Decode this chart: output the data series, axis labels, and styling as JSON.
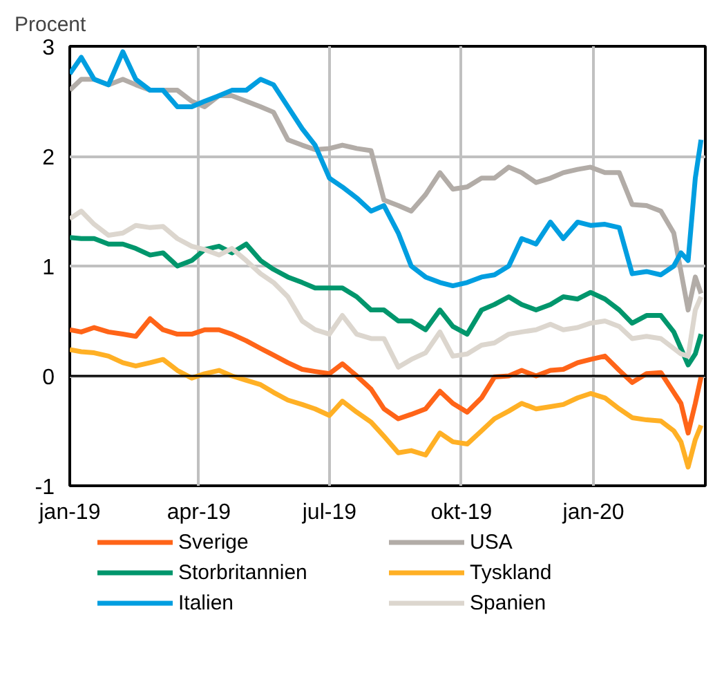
{
  "chart_data": {
    "type": "line",
    "ylabel": "Procent",
    "x": [
      "2019-01-01",
      "2019-01-09",
      "2019-01-18",
      "2019-01-28",
      "2019-02-07",
      "2019-02-16",
      "2019-02-26",
      "2019-03-07",
      "2019-03-17",
      "2019-03-27",
      "2019-04-05",
      "2019-04-15",
      "2019-04-24",
      "2019-05-04",
      "2019-05-14",
      "2019-05-23",
      "2019-06-02",
      "2019-06-12",
      "2019-06-21",
      "2019-07-01",
      "2019-07-10",
      "2019-07-20",
      "2019-07-30",
      "2019-08-08",
      "2019-08-18",
      "2019-08-27",
      "2019-09-06",
      "2019-09-16",
      "2019-09-25",
      "2019-10-05",
      "2019-10-15",
      "2019-10-24",
      "2019-11-03",
      "2019-11-12",
      "2019-11-22",
      "2019-12-02",
      "2019-12-11",
      "2019-12-21",
      "2019-12-30",
      "2020-01-09",
      "2020-01-19",
      "2020-01-28",
      "2020-02-07",
      "2020-02-17",
      "2020-02-26",
      "2020-03-02",
      "2020-03-07",
      "2020-03-12",
      "2020-03-16"
    ],
    "series": [
      {
        "name": "Sverige",
        "color": "#ff6418",
        "values": [
          0.42,
          0.4,
          0.44,
          0.4,
          0.38,
          0.36,
          0.52,
          0.42,
          0.38,
          0.38,
          0.42,
          0.42,
          0.38,
          0.32,
          0.25,
          0.19,
          0.12,
          0.06,
          0.04,
          0.02,
          0.11,
          0.0,
          -0.12,
          -0.3,
          -0.39,
          -0.35,
          -0.3,
          -0.14,
          -0.25,
          -0.33,
          -0.2,
          -0.01,
          0.0,
          0.05,
          0.0,
          0.05,
          0.06,
          0.12,
          0.15,
          0.18,
          0.05,
          -0.06,
          0.02,
          0.03,
          -0.15,
          -0.25,
          -0.52,
          -0.25,
          -0.01
        ]
      },
      {
        "name": "USA",
        "color": "#b2aca7",
        "values": [
          2.6,
          2.7,
          2.7,
          2.65,
          2.7,
          2.65,
          2.6,
          2.6,
          2.6,
          2.5,
          2.45,
          2.55,
          2.55,
          2.5,
          2.45,
          2.4,
          2.15,
          2.1,
          2.06,
          2.07,
          2.1,
          2.07,
          2.05,
          1.6,
          1.55,
          1.5,
          1.65,
          1.85,
          1.7,
          1.72,
          1.8,
          1.8,
          1.9,
          1.85,
          1.76,
          1.8,
          1.85,
          1.88,
          1.9,
          1.85,
          1.85,
          1.56,
          1.55,
          1.5,
          1.3,
          0.95,
          0.6,
          0.9,
          0.75
        ]
      },
      {
        "name": "Storbritannien",
        "color": "#00966c",
        "values": [
          1.26,
          1.25,
          1.25,
          1.2,
          1.2,
          1.16,
          1.1,
          1.12,
          1.0,
          1.05,
          1.15,
          1.18,
          1.12,
          1.2,
          1.05,
          0.97,
          0.9,
          0.85,
          0.8,
          0.8,
          0.8,
          0.72,
          0.6,
          0.6,
          0.5,
          0.5,
          0.42,
          0.6,
          0.45,
          0.38,
          0.6,
          0.65,
          0.72,
          0.65,
          0.6,
          0.65,
          0.72,
          0.7,
          0.76,
          0.7,
          0.6,
          0.48,
          0.55,
          0.55,
          0.4,
          0.25,
          0.1,
          0.2,
          0.38
        ]
      },
      {
        "name": "Tyskland",
        "color": "#ffb025",
        "values": [
          0.24,
          0.22,
          0.21,
          0.18,
          0.12,
          0.09,
          0.12,
          0.15,
          0.05,
          -0.02,
          0.02,
          0.05,
          0.0,
          -0.04,
          -0.08,
          -0.15,
          -0.22,
          -0.26,
          -0.3,
          -0.36,
          -0.23,
          -0.33,
          -0.42,
          -0.55,
          -0.7,
          -0.68,
          -0.72,
          -0.52,
          -0.6,
          -0.62,
          -0.5,
          -0.39,
          -0.32,
          -0.25,
          -0.3,
          -0.28,
          -0.26,
          -0.2,
          -0.16,
          -0.2,
          -0.3,
          -0.38,
          -0.4,
          -0.41,
          -0.5,
          -0.6,
          -0.83,
          -0.58,
          -0.45
        ]
      },
      {
        "name": "Italien",
        "color": "#009ee0",
        "values": [
          2.75,
          2.9,
          2.7,
          2.65,
          2.95,
          2.7,
          2.6,
          2.6,
          2.45,
          2.45,
          2.5,
          2.55,
          2.6,
          2.6,
          2.7,
          2.65,
          2.45,
          2.25,
          2.1,
          1.8,
          1.72,
          1.62,
          1.5,
          1.55,
          1.3,
          1.0,
          0.9,
          0.85,
          0.82,
          0.85,
          0.9,
          0.92,
          1.0,
          1.25,
          1.2,
          1.4,
          1.25,
          1.4,
          1.37,
          1.38,
          1.35,
          0.93,
          0.95,
          0.92,
          1.0,
          1.12,
          1.05,
          1.8,
          2.15
        ]
      },
      {
        "name": "Spanien",
        "color": "#dcd6ce",
        "values": [
          1.43,
          1.5,
          1.38,
          1.28,
          1.3,
          1.37,
          1.35,
          1.36,
          1.25,
          1.18,
          1.15,
          1.1,
          1.16,
          1.05,
          0.93,
          0.85,
          0.72,
          0.5,
          0.42,
          0.38,
          0.55,
          0.38,
          0.34,
          0.34,
          0.08,
          0.15,
          0.21,
          0.4,
          0.18,
          0.2,
          0.28,
          0.3,
          0.38,
          0.4,
          0.42,
          0.47,
          0.42,
          0.44,
          0.48,
          0.5,
          0.45,
          0.34,
          0.36,
          0.34,
          0.25,
          0.2,
          0.18,
          0.6,
          0.72
        ]
      }
    ],
    "xlim": [
      "2019-01-01",
      "2020-03-19"
    ],
    "xticks": [
      {
        "value": "2019-01-01",
        "label": "jan-19"
      },
      {
        "value": "2019-04-01",
        "label": "apr-19"
      },
      {
        "value": "2019-07-01",
        "label": "jul-19"
      },
      {
        "value": "2019-10-01",
        "label": "okt-19"
      },
      {
        "value": "2020-01-01",
        "label": "jan-20"
      }
    ],
    "ylim": [
      -1,
      3
    ],
    "yticks": [
      -1,
      0,
      1,
      2,
      3
    ],
    "ref_lines": [
      {
        "axis": "y",
        "value": 0,
        "color": "#000000"
      }
    ],
    "grid": true,
    "legend": "bottom",
    "line_style": "solid"
  }
}
